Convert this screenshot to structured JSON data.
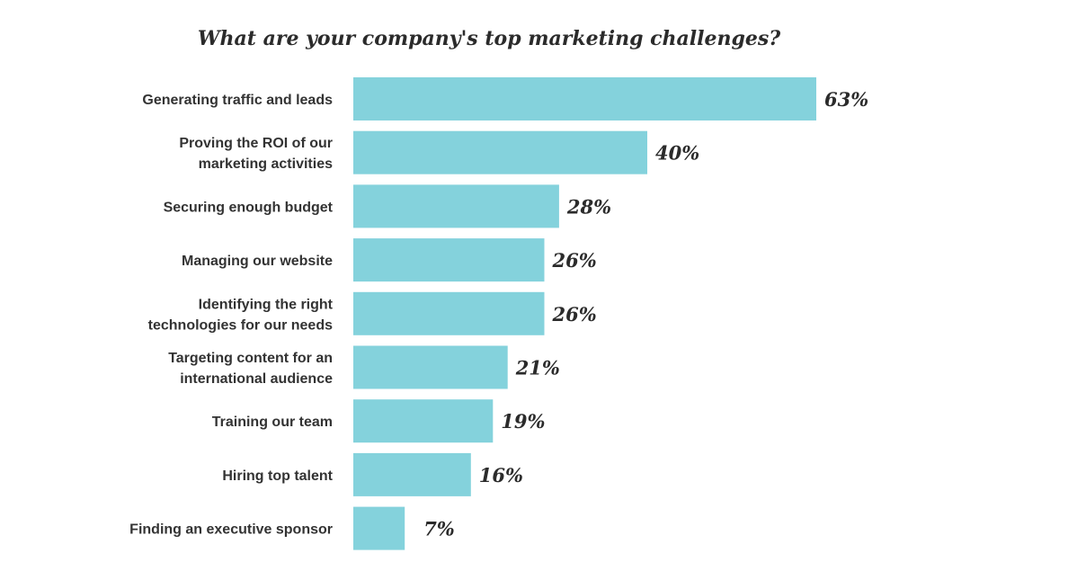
{
  "chart_data": {
    "type": "bar",
    "orientation": "horizontal",
    "title": "What are your company's top marketing challenges?",
    "categories": [
      [
        "Generating traffic and leads"
      ],
      [
        "Proving the ROI of our",
        "marketing activities"
      ],
      [
        "Securing enough budget"
      ],
      [
        "Managing our website"
      ],
      [
        "Identifying the right",
        "technologies for our needs"
      ],
      [
        "Targeting content for an",
        "international audience"
      ],
      [
        "Training our team"
      ],
      [
        "Hiring top talent"
      ],
      [
        "Finding an executive sponsor"
      ]
    ],
    "values": [
      63,
      40,
      28,
      26,
      26,
      21,
      19,
      16,
      7
    ],
    "value_labels": [
      "63%",
      "40%",
      "28%",
      "26%",
      "26%",
      "21%",
      "19%",
      "16%",
      "7%"
    ],
    "unit": "%",
    "xlim": [
      0,
      63
    ],
    "grid": false,
    "legend": "none",
    "colors": {
      "bar": "#84d2dc",
      "text": "#333333",
      "title": "#2b2b2b"
    }
  }
}
